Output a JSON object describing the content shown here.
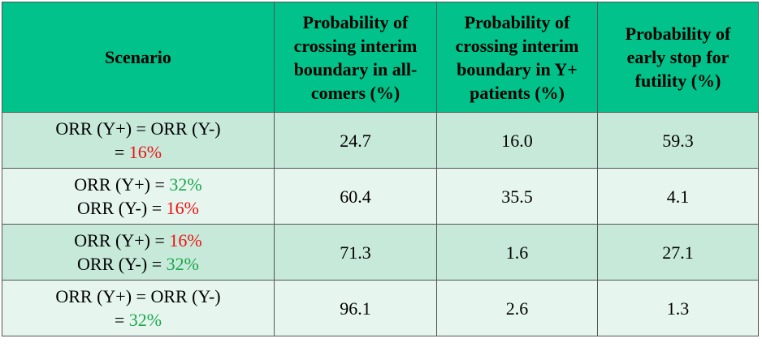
{
  "table": {
    "header": [
      "Scenario",
      "Probability of crossing interim boundary in all-comers (%)",
      "Probability of crossing interim boundary in Y+ patients (%)",
      "Probability of early stop for futility (%)"
    ],
    "rows": [
      {
        "scenario": [
          [
            {
              "text": "ORR (Y+) = ORR (Y-)"
            }
          ],
          [
            {
              "text": "= "
            },
            {
              "text": "16%",
              "color": "#ee1111"
            }
          ]
        ],
        "values": [
          "24.7",
          "16.0",
          "59.3"
        ]
      },
      {
        "scenario": [
          [
            {
              "text": "ORR (Y+) = "
            },
            {
              "text": "32%",
              "color": "#1aa64a"
            }
          ],
          [
            {
              "text": "ORR (Y-) = "
            },
            {
              "text": "16%",
              "color": "#ee1111"
            }
          ]
        ],
        "values": [
          "60.4",
          "35.5",
          "4.1"
        ]
      },
      {
        "scenario": [
          [
            {
              "text": "ORR (Y+) = "
            },
            {
              "text": "16%",
              "color": "#ee1111"
            }
          ],
          [
            {
              "text": "ORR (Y-) = "
            },
            {
              "text": "32%",
              "color": "#1aa64a"
            }
          ]
        ],
        "values": [
          "71.3",
          "1.6",
          "27.1"
        ]
      },
      {
        "scenario": [
          [
            {
              "text": "ORR (Y+) = ORR (Y-)"
            }
          ],
          [
            {
              "text": "= "
            },
            {
              "text": "32%",
              "color": "#1aa64a"
            }
          ]
        ],
        "values": [
          "96.1",
          "2.6",
          "1.3"
        ]
      }
    ]
  }
}
